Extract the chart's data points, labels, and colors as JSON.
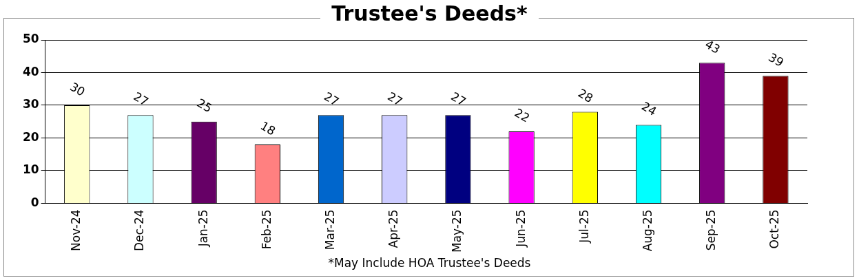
{
  "chart_data": {
    "type": "bar",
    "title": "Trustee's Deeds*",
    "categories": [
      "Nov-24",
      "Dec-24",
      "Jan-25",
      "Feb-25",
      "Mar-25",
      "Apr-25",
      "May-25",
      "Jun-25",
      "Jul-25",
      "Aug-25",
      "Sep-25",
      "Oct-25"
    ],
    "values": [
      30,
      27,
      25,
      18,
      27,
      27,
      27,
      22,
      28,
      24,
      43,
      39
    ],
    "colors": [
      "#ffffcc",
      "#ccffff",
      "#660066",
      "#ff8080",
      "#0066cc",
      "#ccccff",
      "#000080",
      "#ff00ff",
      "#ffff00",
      "#00ffff",
      "#800080",
      "#800000"
    ],
    "ylim": [
      0,
      50
    ],
    "yticks": [
      0,
      10,
      20,
      30,
      40,
      50
    ],
    "grid": "y",
    "data_labels": true,
    "legend": false,
    "annotations": [
      "*May Include HOA Trustee's Deeds"
    ]
  }
}
